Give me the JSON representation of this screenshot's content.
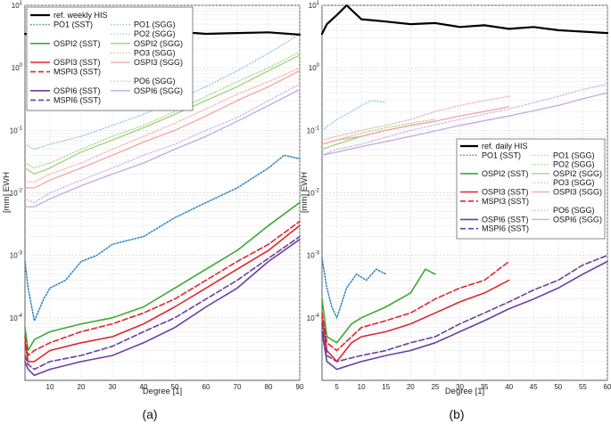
{
  "colors": {
    "black": "#000000",
    "blue": "#2a7fc0",
    "green": "#3aaa35",
    "lightgreen": "#9fd17e",
    "red": "#e0262b",
    "pink": "#f2a3a3",
    "purple": "#6a3ea1",
    "lavender": "#c4a8df",
    "lightblue": "#86c2ea"
  },
  "chart_data": [
    {
      "type": "line",
      "panel_label": "(a)",
      "xlabel": "Degree [1]",
      "ylabel": "[mm] EWH",
      "yscale": "log",
      "xlim": [
        2,
        90
      ],
      "ylim": [
        1e-05,
        10
      ],
      "xticks": [
        "10",
        "20",
        "30",
        "40",
        "50",
        "60",
        "70",
        "80",
        "90"
      ],
      "yticks": [
        "10^{-4}",
        "10^{-3}",
        "10^{-2}",
        "10^{-1}",
        "10^{0}",
        "10^{1}"
      ],
      "legend_position": "top-left",
      "series": [
        {
          "name": "ref. weekly HIS",
          "color": "black",
          "style": "solid",
          "width": 2.2,
          "x": [
            2,
            6,
            10,
            20,
            30,
            40,
            50,
            60,
            70,
            80,
            90
          ],
          "y": [
            3.5,
            3.2,
            3.8,
            3.4,
            3.6,
            3.3,
            3.8,
            3.5,
            3.6,
            3.7,
            3.4
          ]
        },
        {
          "name": "PO1 (SST)",
          "color": "blue",
          "style": "dot",
          "width": 1.5,
          "x": [
            2,
            3,
            5,
            8,
            10,
            15,
            20,
            25,
            30,
            40,
            50,
            60,
            70,
            80,
            85,
            90
          ],
          "y": [
            0.0008,
            0.0003,
            9e-05,
            0.0002,
            0.0003,
            0.0004,
            0.0008,
            0.001,
            0.0015,
            0.002,
            0.004,
            0.007,
            0.012,
            0.025,
            0.04,
            0.035
          ]
        },
        {
          "name": "OSPI2 (SST)",
          "color": "green",
          "style": "solid",
          "width": 1.6,
          "x": [
            2,
            3,
            5,
            10,
            20,
            30,
            40,
            50,
            60,
            70,
            80,
            90
          ],
          "y": [
            7e-05,
            3e-05,
            4.5e-05,
            6e-05,
            8e-05,
            0.0001,
            0.00015,
            0.0003,
            0.0006,
            0.0012,
            0.003,
            0.007
          ]
        },
        {
          "name": "OSPI3 (SST)",
          "color": "red",
          "style": "solid",
          "width": 1.6,
          "x": [
            2,
            3,
            5,
            10,
            20,
            30,
            40,
            50,
            60,
            70,
            80,
            90
          ],
          "y": [
            4e-05,
            2e-05,
            2e-05,
            3e-05,
            4e-05,
            5e-05,
            8e-05,
            0.00015,
            0.0003,
            0.0006,
            0.0012,
            0.003
          ]
        },
        {
          "name": "MSPI3 (SST)",
          "color": "red",
          "style": "dash",
          "width": 1.6,
          "x": [
            2,
            3,
            5,
            10,
            20,
            30,
            40,
            50,
            60,
            70,
            80,
            90
          ],
          "y": [
            5e-05,
            2.5e-05,
            3e-05,
            4e-05,
            6e-05,
            8e-05,
            0.00012,
            0.0002,
            0.0004,
            0.0008,
            0.0015,
            0.0035
          ]
        },
        {
          "name": "OSPI6 (SST)",
          "color": "purple",
          "style": "solid",
          "width": 1.6,
          "x": [
            2,
            3,
            5,
            10,
            20,
            30,
            40,
            50,
            60,
            70,
            80,
            90
          ],
          "y": [
            2e-05,
            1.5e-05,
            1.2e-05,
            1.5e-05,
            2e-05,
            2.5e-05,
            4e-05,
            7e-05,
            0.00015,
            0.0003,
            0.0008,
            0.0018
          ]
        },
        {
          "name": "MSPI6 (SST)",
          "color": "purple",
          "style": "dash",
          "width": 1.6,
          "x": [
            2,
            3,
            5,
            10,
            20,
            30,
            40,
            50,
            60,
            70,
            80,
            90
          ],
          "y": [
            2.5e-05,
            1.8e-05,
            1.5e-05,
            2e-05,
            2.5e-05,
            3.5e-05,
            6e-05,
            0.0001,
            0.0002,
            0.0004,
            0.0009,
            0.002
          ]
        },
        {
          "name": "PO1 (SGG)",
          "color": "lightblue",
          "style": "dot",
          "width": 1.1,
          "x": [
            2,
            5,
            10,
            20,
            30,
            40,
            50,
            60,
            70,
            80,
            90
          ],
          "y": [
            0.06,
            0.05,
            0.06,
            0.08,
            0.12,
            0.18,
            0.3,
            0.5,
            0.9,
            1.7,
            3.5
          ]
        },
        {
          "name": "PO2 (SGG)",
          "color": "lightgreen",
          "style": "dot",
          "width": 1.1,
          "x": [
            2,
            5,
            10,
            20,
            30,
            40,
            50,
            60,
            70,
            80,
            90
          ],
          "y": [
            0.03,
            0.025,
            0.03,
            0.05,
            0.08,
            0.12,
            0.2,
            0.35,
            0.6,
            1.0,
            1.8
          ]
        },
        {
          "name": "OSPI2 (SGG)",
          "color": "lightgreen",
          "style": "solid",
          "width": 1.3,
          "x": [
            2,
            5,
            10,
            20,
            30,
            40,
            50,
            60,
            70,
            80,
            90
          ],
          "y": [
            0.025,
            0.02,
            0.025,
            0.045,
            0.07,
            0.11,
            0.18,
            0.3,
            0.5,
            0.9,
            1.6
          ]
        },
        {
          "name": "PO3 (SGG)",
          "color": "pink",
          "style": "dot",
          "width": 1.1,
          "x": [
            2,
            5,
            10,
            20,
            30,
            40,
            50,
            60,
            70,
            80,
            90
          ],
          "y": [
            0.015,
            0.015,
            0.02,
            0.03,
            0.05,
            0.08,
            0.13,
            0.22,
            0.38,
            0.6,
            1.0
          ]
        },
        {
          "name": "OSPI3 (SGG)",
          "color": "pink",
          "style": "solid",
          "width": 1.3,
          "x": [
            2,
            5,
            10,
            20,
            30,
            40,
            50,
            60,
            70,
            80,
            90
          ],
          "y": [
            0.012,
            0.012,
            0.016,
            0.025,
            0.04,
            0.065,
            0.1,
            0.17,
            0.3,
            0.5,
            0.9
          ]
        },
        {
          "name": "PO6 (SGG)",
          "color": "lavender",
          "style": "dot",
          "width": 1.1,
          "x": [
            2,
            5,
            10,
            20,
            30,
            40,
            50,
            60,
            70,
            80,
            90
          ],
          "y": [
            0.008,
            0.007,
            0.01,
            0.016,
            0.025,
            0.04,
            0.06,
            0.1,
            0.16,
            0.3,
            0.55
          ]
        },
        {
          "name": "OSPI6 (SGG)",
          "color": "lavender",
          "style": "solid",
          "width": 1.3,
          "x": [
            2,
            5,
            10,
            20,
            30,
            40,
            50,
            60,
            70,
            80,
            90
          ],
          "y": [
            0.006,
            0.006,
            0.008,
            0.013,
            0.02,
            0.03,
            0.05,
            0.08,
            0.14,
            0.25,
            0.45
          ]
        }
      ]
    },
    {
      "type": "line",
      "panel_label": "(b)",
      "xlabel": "Degree [1]",
      "ylabel": "[mm] EWH",
      "yscale": "log",
      "xlim": [
        2,
        60
      ],
      "ylim": [
        1e-05,
        10
      ],
      "xticks": [
        "5",
        "10",
        "15",
        "20",
        "25",
        "30",
        "35",
        "40",
        "45",
        "50",
        "55",
        "60"
      ],
      "yticks": [
        "10^{-4}",
        "10^{-3}",
        "10^{-2}",
        "10^{-1}",
        "10^{0}",
        "10^{1}"
      ],
      "legend_position": "center-right",
      "series": [
        {
          "name": "ref. daily HIS",
          "color": "black",
          "style": "solid",
          "width": 2.2,
          "x": [
            2,
            3,
            5,
            7,
            10,
            15,
            20,
            25,
            30,
            35,
            40,
            45,
            50,
            55,
            60
          ],
          "y": [
            3.5,
            5,
            7,
            10,
            6,
            5.5,
            5,
            5.2,
            4.5,
            4.8,
            4.2,
            4.5,
            4.0,
            3.8,
            3.6
          ]
        },
        {
          "name": "PO1 (SST)",
          "color": "blue",
          "style": "dot",
          "width": 1.5,
          "x": [
            2,
            3,
            4,
            5,
            7,
            9,
            11,
            13,
            15
          ],
          "y": [
            0.0009,
            0.0003,
            0.00015,
            0.0001,
            0.0003,
            0.0005,
            0.0004,
            0.0006,
            0.0005
          ]
        },
        {
          "name": "OSPI2 (SST)",
          "color": "green",
          "style": "solid",
          "width": 1.6,
          "x": [
            2,
            3,
            5,
            8,
            10,
            15,
            20,
            23,
            25
          ],
          "y": [
            0.0002,
            5e-05,
            4e-05,
            8e-05,
            0.0001,
            0.00015,
            0.00025,
            0.0006,
            0.0005
          ]
        },
        {
          "name": "OSPI3 (SST)",
          "color": "red",
          "style": "solid",
          "width": 1.6,
          "x": [
            2,
            3,
            5,
            8,
            10,
            15,
            20,
            25,
            30,
            35,
            40
          ],
          "y": [
            0.0001,
            3e-05,
            2e-05,
            4e-05,
            5e-05,
            6e-05,
            8e-05,
            0.00012,
            0.00018,
            0.00025,
            0.0004
          ]
        },
        {
          "name": "MSPI3 (SST)",
          "color": "red",
          "style": "dash",
          "width": 1.6,
          "x": [
            2,
            3,
            5,
            8,
            10,
            15,
            20,
            25,
            30,
            35,
            40
          ],
          "y": [
            0.00012,
            4e-05,
            3e-05,
            5e-05,
            7e-05,
            9e-05,
            0.00012,
            0.0002,
            0.0003,
            0.0004,
            0.0008
          ]
        },
        {
          "name": "OSPI6 (SST)",
          "color": "purple",
          "style": "solid",
          "width": 1.6,
          "x": [
            2,
            3,
            5,
            10,
            15,
            20,
            25,
            30,
            35,
            40,
            45,
            50,
            55,
            60
          ],
          "y": [
            6e-05,
            2e-05,
            1.5e-05,
            2e-05,
            2.5e-05,
            3e-05,
            4e-05,
            6e-05,
            9e-05,
            0.00014,
            0.0002,
            0.0003,
            0.0005,
            0.0008
          ]
        },
        {
          "name": "MSPI6 (SST)",
          "color": "purple",
          "style": "dash",
          "width": 1.6,
          "x": [
            2,
            3,
            5,
            10,
            15,
            20,
            25,
            30,
            35,
            40,
            45,
            50,
            55,
            60
          ],
          "y": [
            8e-05,
            2.5e-05,
            2e-05,
            2.5e-05,
            3e-05,
            4e-05,
            5e-05,
            8e-05,
            0.00012,
            0.00018,
            0.00028,
            0.0004,
            0.0007,
            0.001
          ]
        },
        {
          "name": "PO1 (SGG)",
          "color": "lightblue",
          "style": "dot",
          "width": 1.1,
          "x": [
            2,
            5,
            8,
            10,
            12,
            15
          ],
          "y": [
            0.1,
            0.15,
            0.2,
            0.25,
            0.3,
            0.28
          ]
        },
        {
          "name": "PO2 (SGG)",
          "color": "lightgreen",
          "style": "dot",
          "width": 1.1,
          "x": [
            2,
            5,
            10,
            15,
            20,
            25
          ],
          "y": [
            0.06,
            0.07,
            0.09,
            0.11,
            0.13,
            0.15
          ]
        },
        {
          "name": "OSPI2 (SGG)",
          "color": "lightgreen",
          "style": "solid",
          "width": 1.3,
          "x": [
            2,
            5,
            10,
            15,
            20,
            25
          ],
          "y": [
            0.05,
            0.06,
            0.08,
            0.1,
            0.12,
            0.14
          ]
        },
        {
          "name": "PO3 (SGG)",
          "color": "pink",
          "style": "dot",
          "width": 1.1,
          "x": [
            2,
            5,
            10,
            15,
            20,
            25,
            30,
            35,
            40
          ],
          "y": [
            0.07,
            0.08,
            0.1,
            0.12,
            0.15,
            0.2,
            0.25,
            0.3,
            0.35
          ]
        },
        {
          "name": "OSPI3 (SGG)",
          "color": "pink",
          "style": "solid",
          "width": 1.3,
          "x": [
            2,
            5,
            10,
            15,
            20,
            25,
            30,
            35,
            40
          ],
          "y": [
            0.06,
            0.07,
            0.08,
            0.1,
            0.12,
            0.14,
            0.17,
            0.2,
            0.24
          ]
        },
        {
          "name": "PO6 (SGG)",
          "color": "lavender",
          "style": "dot",
          "width": 1.1,
          "x": [
            2,
            5,
            10,
            20,
            30,
            40,
            50,
            55,
            60
          ],
          "y": [
            0.04,
            0.05,
            0.06,
            0.1,
            0.15,
            0.22,
            0.35,
            0.45,
            0.55
          ]
        },
        {
          "name": "OSPI6 (SGG)",
          "color": "lavender",
          "style": "solid",
          "width": 1.3,
          "x": [
            2,
            5,
            10,
            20,
            30,
            40,
            50,
            55,
            60
          ],
          "y": [
            0.04,
            0.045,
            0.055,
            0.08,
            0.12,
            0.17,
            0.25,
            0.32,
            0.4
          ]
        }
      ]
    }
  ]
}
